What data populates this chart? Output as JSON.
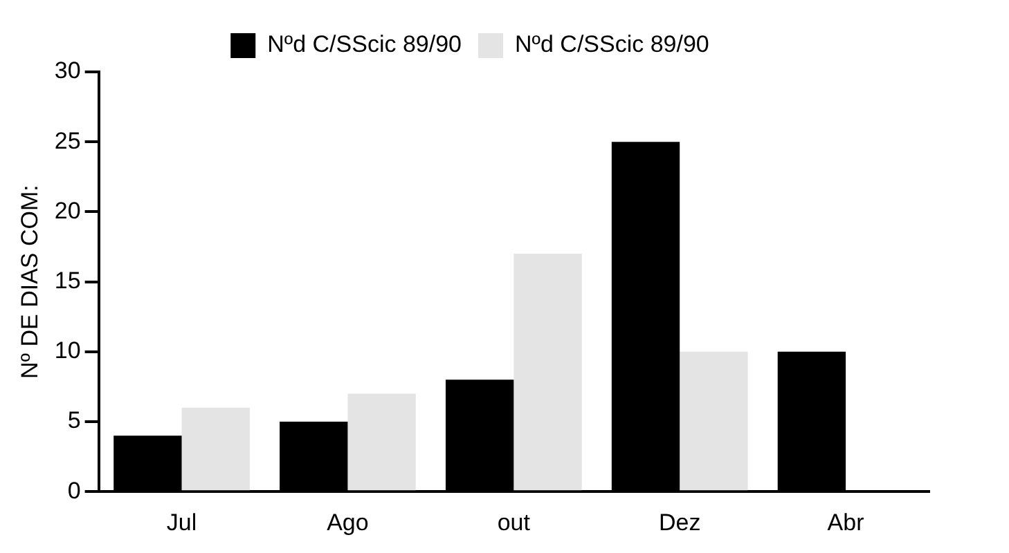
{
  "chart_data": {
    "type": "bar",
    "ylabel": "Nº DE DIAS COM:",
    "categories": [
      "Jul",
      "Ago",
      "out",
      "Dez",
      "Abr"
    ],
    "series": [
      {
        "name": "Nºd C/SScic 89/90",
        "color": "#000000",
        "values": [
          4,
          5,
          8,
          25,
          10
        ]
      },
      {
        "name": "Nºd C/SScic 89/90",
        "color": "#e4e4e4",
        "values": [
          6,
          7,
          17,
          10,
          null
        ]
      }
    ],
    "ylim": [
      0,
      30
    ],
    "yticks": [
      0,
      5,
      10,
      15,
      20,
      25,
      30
    ],
    "grid": false,
    "legend": "top"
  }
}
